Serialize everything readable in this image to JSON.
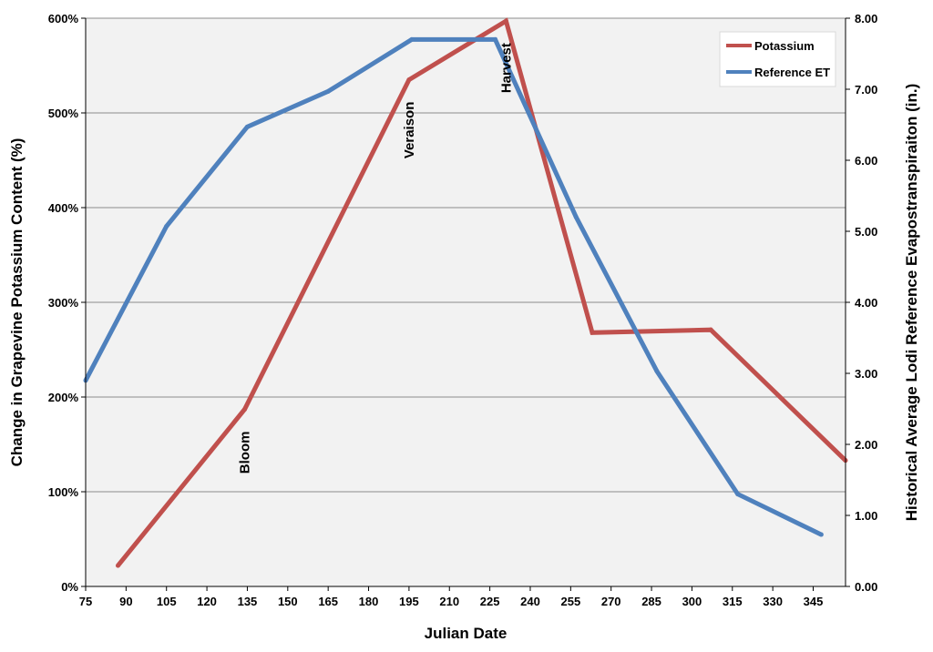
{
  "chart_data": {
    "type": "line",
    "title": "",
    "xlabel": "Julian Date",
    "ylabel_left": "Change in Grapevine Potassium Content (%)",
    "ylabel_right": "Historical Average Lodi Reference Evapostranspiraiton (in.)",
    "x_ticks": [
      75,
      90,
      105,
      120,
      135,
      150,
      165,
      180,
      195,
      210,
      225,
      240,
      255,
      270,
      285,
      300,
      315,
      330,
      345
    ],
    "x_tick_labels": [
      "75",
      "90",
      "105",
      "120",
      "135",
      "150",
      "165",
      "180",
      "195",
      "210",
      "225",
      "240",
      "255",
      "270",
      "285",
      "300",
      "315",
      "330",
      "345"
    ],
    "xlim": [
      75,
      357
    ],
    "y_left_ticks": [
      0,
      100,
      200,
      300,
      400,
      500,
      600
    ],
    "y_left_tick_labels": [
      "0%",
      "100%",
      "200%",
      "300%",
      "400%",
      "500%",
      "600%"
    ],
    "ylim_left": [
      0,
      600
    ],
    "y_right_ticks": [
      0,
      1,
      2,
      3,
      4,
      5,
      6,
      7,
      8
    ],
    "y_right_tick_labels": [
      "0.00",
      "1.00",
      "2.00",
      "3.00",
      "4.00",
      "5.00",
      "6.00",
      "7.00",
      "8.00"
    ],
    "ylim_right": [
      0,
      8
    ],
    "grid": true,
    "legend_position": "top-right",
    "series": [
      {
        "name": "Potassium",
        "axis": "left",
        "color": "#C0504D",
        "points": [
          [
            87,
            22
          ],
          [
            134,
            187
          ],
          [
            195,
            535
          ],
          [
            231,
            597
          ],
          [
            263,
            268
          ],
          [
            307,
            271
          ],
          [
            357,
            133
          ]
        ]
      },
      {
        "name": "Reference ET",
        "axis": "right",
        "color": "#4F81BD",
        "points": [
          [
            75,
            2.9
          ],
          [
            105,
            5.07
          ],
          [
            135,
            6.47
          ],
          [
            165,
            6.97
          ],
          [
            196,
            7.7
          ],
          [
            227,
            7.7
          ],
          [
            257,
            5.2
          ],
          [
            287,
            3.03
          ],
          [
            317,
            1.3
          ],
          [
            348,
            0.73
          ]
        ]
      }
    ],
    "annotations": [
      {
        "text": "Bloom",
        "x": 134,
        "y": 187
      },
      {
        "text": "Veraison",
        "x": 195,
        "y": 535
      },
      {
        "text": "Harvest",
        "x": 231,
        "y": 597
      }
    ]
  }
}
